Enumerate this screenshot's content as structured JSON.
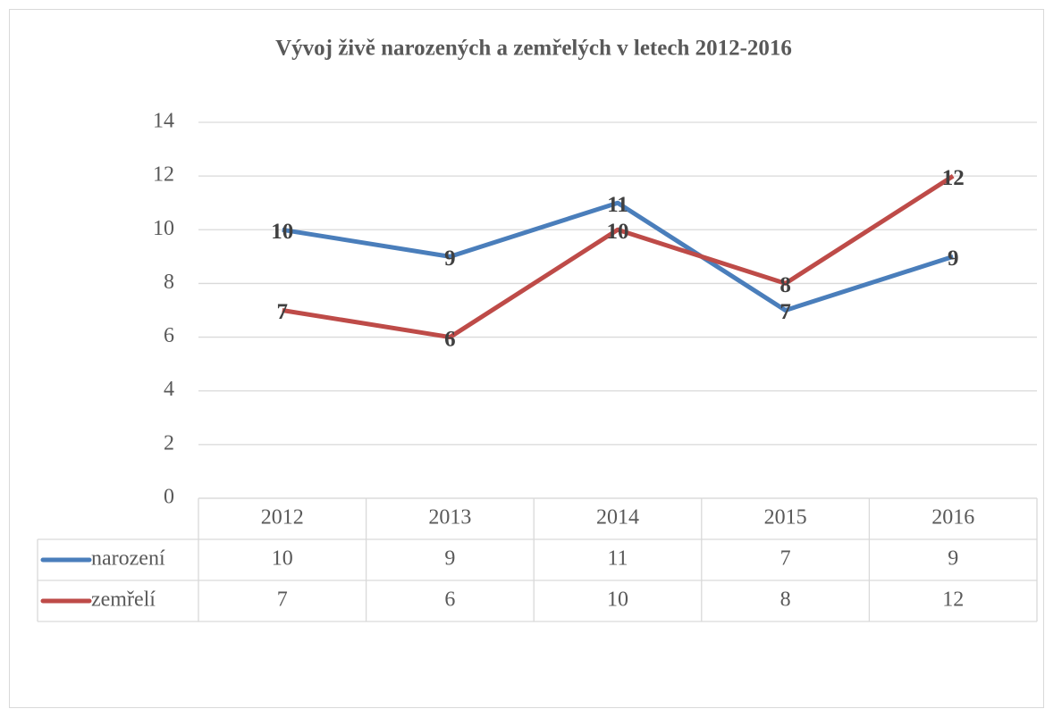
{
  "chart_data": {
    "type": "line",
    "title": "Vývoj živě narozených a zemřelých v letech 2012-2016",
    "categories": [
      "2012",
      "2013",
      "2014",
      "2015",
      "2016"
    ],
    "series": [
      {
        "name": "narození",
        "color": "#4a7ebb",
        "values": [
          10,
          9,
          11,
          7,
          9
        ]
      },
      {
        "name": "zemřelí",
        "color": "#be4b48",
        "values": [
          7,
          6,
          10,
          8,
          12
        ]
      }
    ],
    "ylim": [
      0,
      14
    ],
    "yticks": [
      0,
      2,
      4,
      6,
      8,
      10,
      12,
      14
    ],
    "grid": true
  }
}
